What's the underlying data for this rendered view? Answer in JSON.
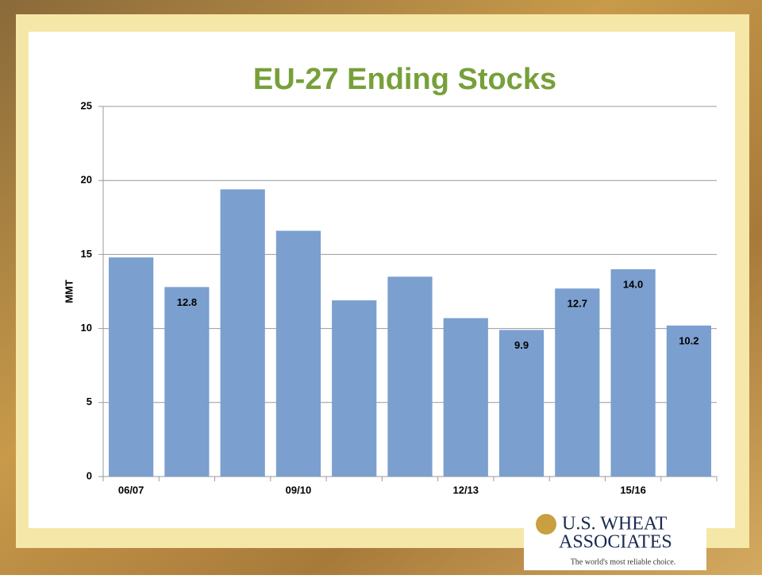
{
  "chart_data": {
    "type": "bar",
    "title": "EU-27 Ending Stocks",
    "y_label": "MMT",
    "categories": [
      "06/07",
      null,
      null,
      "09/10",
      null,
      null,
      "12/13",
      null,
      null,
      "15/16",
      null
    ],
    "values": [
      14.8,
      12.8,
      19.4,
      16.6,
      11.9,
      13.5,
      10.7,
      9.9,
      12.7,
      14.0,
      10.2
    ],
    "value_labels": [
      null,
      "12.8",
      null,
      null,
      null,
      null,
      null,
      "9.9",
      "12.7",
      "14.0",
      "10.2"
    ],
    "color": "#7b9fcf",
    "ylim": [
      0,
      25
    ],
    "yticks": [
      0,
      5,
      10,
      15,
      20,
      25
    ],
    "grid": true
  },
  "logo": {
    "line1": "U.S. WHEAT",
    "line2": "ASSOCIATES",
    "tagline": "The world's most reliable choice."
  }
}
